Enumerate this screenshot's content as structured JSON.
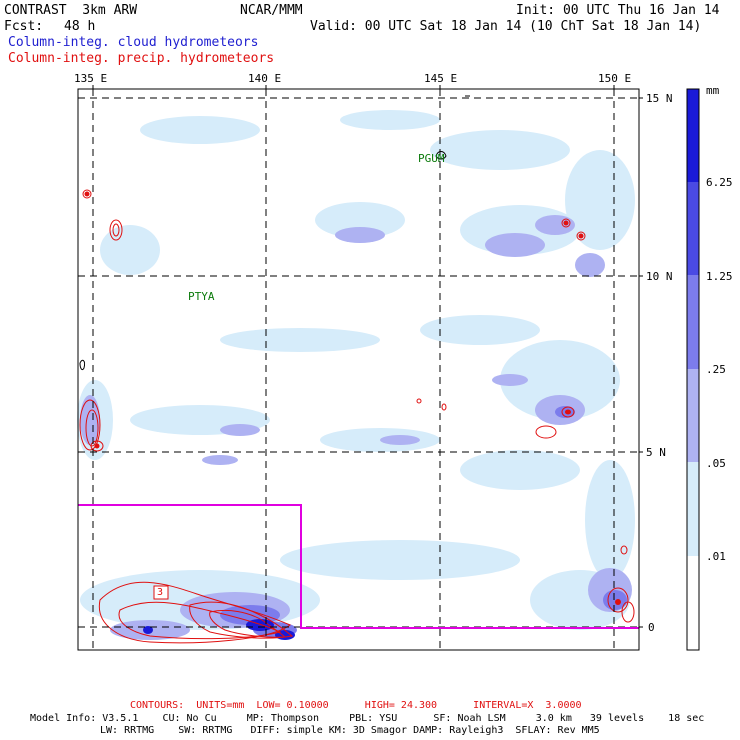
{
  "header": {
    "title": "CONTRAST  3km ARW",
    "org": "NCAR/MMM",
    "init": "Init: 00 UTC Thu 16 Jan 14",
    "fcst_label": "Fcst:",
    "fcst_value": "48 h",
    "valid": "Valid: 00 UTC Sat 18 Jan 14 (10 ChT Sat 18 Jan 14)",
    "field1": "Column-integ. cloud hydrometeors",
    "field2": "Column-integ. precip. hydrometeors"
  },
  "map": {
    "lon_ticks": [
      "135 E",
      "140 E",
      "145 E",
      "150 E"
    ],
    "lat_ticks": [
      "15 N",
      "10 N",
      "5 N",
      "0"
    ],
    "stations": [
      "PGUM",
      "PTYA"
    ],
    "contour_label": "3"
  },
  "legend": {
    "unit": "mm",
    "levels": [
      "6.25",
      "1.25",
      ".25",
      ".05",
      ".01"
    ],
    "colors": [
      "#1a1ad8",
      "#4a4ae4",
      "#7c7cec",
      "#aeb2f2",
      "#d6ecfa",
      "#ffffff"
    ]
  },
  "footer": {
    "contours": "CONTOURS:  UNITS=mm  LOW= 0.10000      HIGH= 24.300      INTERVAL=X  3.0000",
    "model_line1": "Model Info: V3.5.1    CU: No Cu     MP: Thompson     PBL: YSU      SF: Noah LSM     3.0 km   39 levels    18 sec",
    "model_line2": "LW: RRTMG    SW: RRTMG   DIFF: simple KM: 3D Smagor DAMP: Rayleigh3  SFLAY: Rev MM5"
  }
}
